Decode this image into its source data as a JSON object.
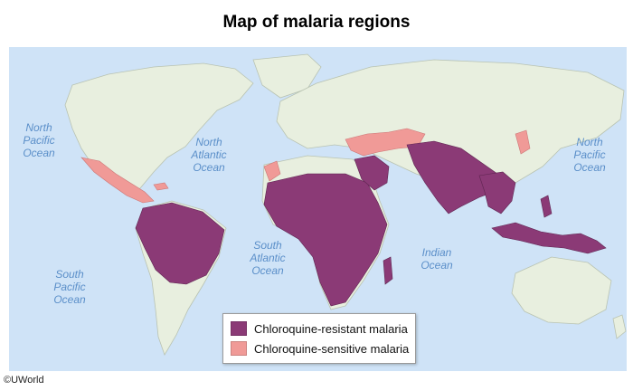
{
  "title": "Map of malaria regions",
  "colors": {
    "ocean": "#cfe3f7",
    "land": "#e8efdf",
    "border": "#b9c3b2",
    "resistant": "#8b3a76",
    "sensitive": "#f09a97"
  },
  "ocean_labels": {
    "north_pacific": "North Pacific Ocean",
    "north_atlantic": "North Atlantic Ocean",
    "south_atlantic": "South Atlantic Ocean",
    "south_pacific": "South Pacific Ocean",
    "indian": "Indian Ocean",
    "north_pacific_east": "North Pacific Ocean"
  },
  "legend": {
    "resistant_label": "Chloroquine-resistant malaria",
    "sensitive_label": "Chloroquine-sensitive malaria"
  },
  "copyright": "©UWorld"
}
